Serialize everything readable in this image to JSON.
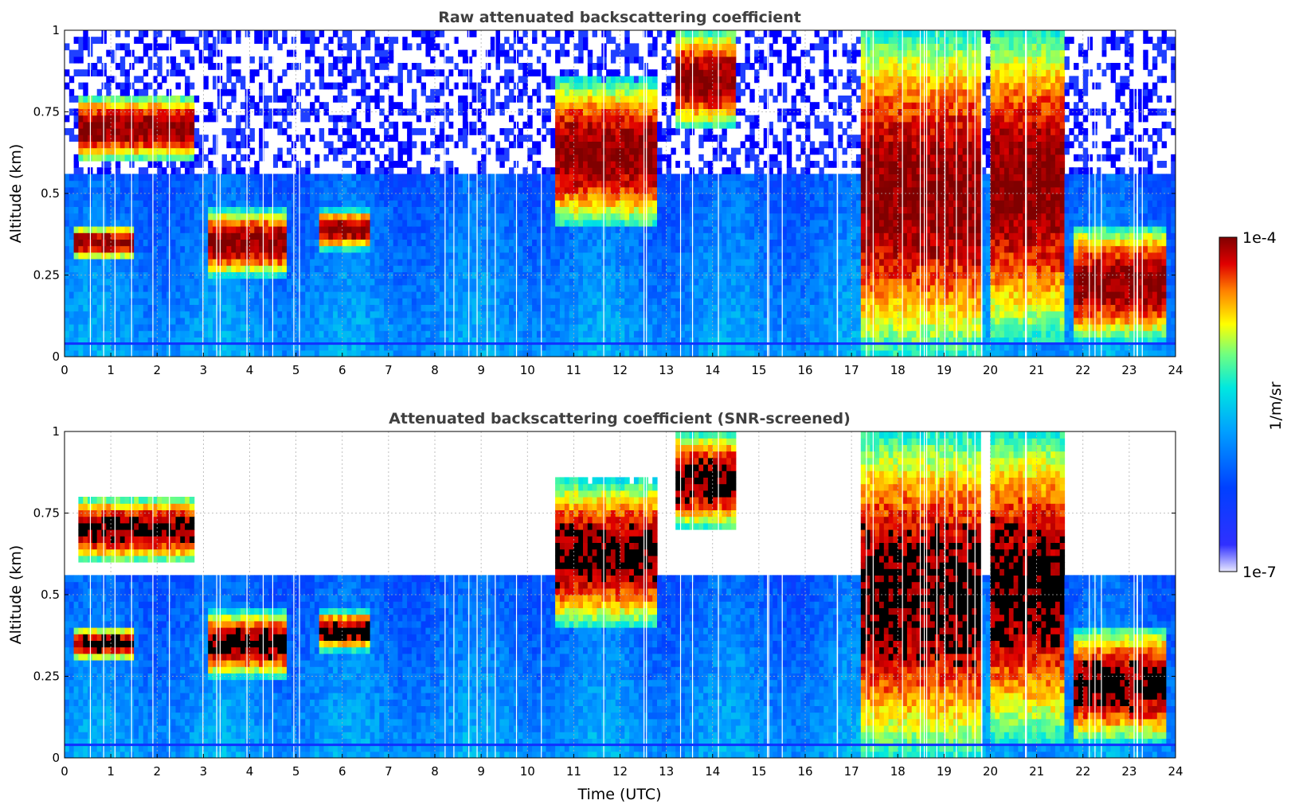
{
  "chart_data": [
    {
      "type": "heatmap",
      "title": "Raw attenuated backscattering coefficient",
      "xlabel": "",
      "ylabel": "Altitude (km)",
      "xlim": [
        0,
        24
      ],
      "ylim": [
        0,
        1
      ],
      "x_ticks": [
        "0",
        "1",
        "2",
        "3",
        "4",
        "5",
        "6",
        "7",
        "8",
        "9",
        "10",
        "11",
        "12",
        "13",
        "14",
        "15",
        "16",
        "17",
        "18",
        "19",
        "20",
        "21",
        "22",
        "23",
        "24"
      ],
      "y_ticks": [
        "0",
        "0.25",
        "0.5",
        "0.75",
        "1"
      ],
      "screened": false,
      "cloud_layers": [
        {
          "t_start": 0.3,
          "t_end": 2.8,
          "alt_low": 0.6,
          "alt_high": 0.8
        },
        {
          "t_start": 0.2,
          "t_end": 1.5,
          "alt_low": 0.3,
          "alt_high": 0.4
        },
        {
          "t_start": 3.1,
          "t_end": 4.8,
          "alt_low": 0.25,
          "alt_high": 0.45
        },
        {
          "t_start": 5.5,
          "t_end": 6.6,
          "alt_low": 0.33,
          "alt_high": 0.45
        },
        {
          "t_start": 10.6,
          "t_end": 12.8,
          "alt_low": 0.4,
          "alt_high": 0.85
        },
        {
          "t_start": 13.2,
          "t_end": 14.5,
          "alt_low": 0.7,
          "alt_high": 1.0
        },
        {
          "t_start": 17.2,
          "t_end": 19.8,
          "alt_low": 0.0,
          "alt_high": 1.0
        },
        {
          "t_start": 20.0,
          "t_end": 21.6,
          "alt_low": 0.05,
          "alt_high": 1.0
        },
        {
          "t_start": 21.8,
          "t_end": 23.8,
          "alt_low": 0.05,
          "alt_high": 0.4
        }
      ]
    },
    {
      "type": "heatmap",
      "title": "Attenuated backscattering coefficient (SNR-screened)",
      "xlabel": "Time (UTC)",
      "ylabel": "Altitude (km)",
      "xlim": [
        0,
        24
      ],
      "ylim": [
        0,
        1
      ],
      "x_ticks": [
        "0",
        "1",
        "2",
        "3",
        "4",
        "5",
        "6",
        "7",
        "8",
        "9",
        "10",
        "11",
        "12",
        "13",
        "14",
        "15",
        "16",
        "17",
        "18",
        "19",
        "20",
        "21",
        "22",
        "23",
        "24"
      ],
      "y_ticks": [
        "0",
        "0.25",
        "0.5",
        "0.75",
        "1"
      ],
      "screened": true,
      "grid": true,
      "cloud_layers": [
        {
          "t_start": 0.3,
          "t_end": 2.8,
          "alt_low": 0.6,
          "alt_high": 0.8
        },
        {
          "t_start": 0.2,
          "t_end": 1.5,
          "alt_low": 0.3,
          "alt_high": 0.4
        },
        {
          "t_start": 3.1,
          "t_end": 4.8,
          "alt_low": 0.25,
          "alt_high": 0.45
        },
        {
          "t_start": 5.5,
          "t_end": 6.6,
          "alt_low": 0.33,
          "alt_high": 0.45
        },
        {
          "t_start": 10.6,
          "t_end": 12.8,
          "alt_low": 0.4,
          "alt_high": 0.85
        },
        {
          "t_start": 13.2,
          "t_end": 14.5,
          "alt_low": 0.7,
          "alt_high": 1.0
        },
        {
          "t_start": 17.2,
          "t_end": 19.8,
          "alt_low": 0.0,
          "alt_high": 1.0
        },
        {
          "t_start": 20.0,
          "t_end": 21.6,
          "alt_low": 0.05,
          "alt_high": 1.0
        },
        {
          "t_start": 21.8,
          "t_end": 23.8,
          "alt_low": 0.05,
          "alt_high": 0.4
        }
      ]
    }
  ],
  "colorbar": {
    "max_label": "1e-4",
    "min_label": "1e-7",
    "unit_label": "1/m/sr",
    "scale": "log",
    "range": [
      1e-07,
      0.0001
    ],
    "colors": [
      "#e8e8ff",
      "#0000ff",
      "#00a0ff",
      "#00ffff",
      "#80ff80",
      "#ffff00",
      "#ff8000",
      "#ff0000",
      "#800000"
    ]
  }
}
